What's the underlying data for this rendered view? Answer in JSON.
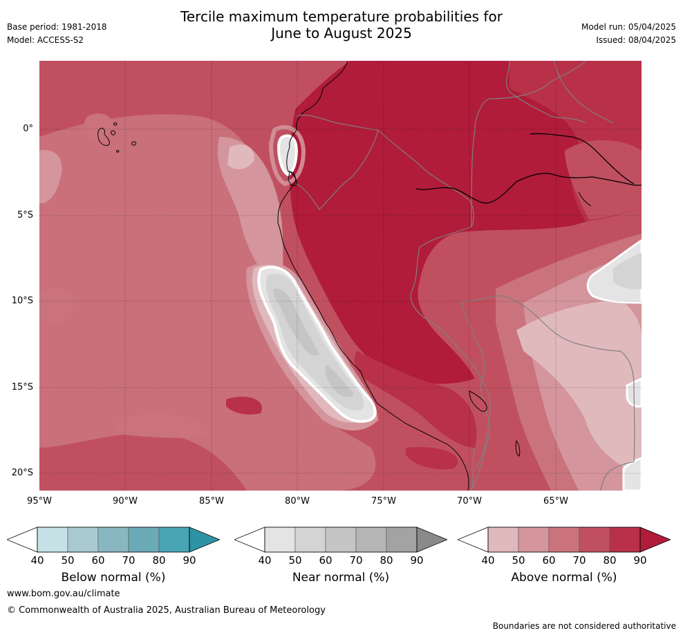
{
  "header": {
    "title_line1": "Tercile maximum temperature probabilities for",
    "title_line2": "June to August 2025",
    "base_period": "Base period: 1981-2018",
    "model": "Model: ACCESS-S2",
    "model_run": "Model run: 05/04/2025",
    "issued": "Issued: 08/04/2025"
  },
  "map": {
    "region": "western South America",
    "lon_range": [
      -95,
      -60
    ],
    "lat_range": [
      -21,
      4
    ],
    "lat_labels": [
      "0°",
      "5°S",
      "10°S",
      "15°S",
      "20°S"
    ],
    "lon_labels": [
      "95°W",
      "90°W",
      "85°W",
      "80°W",
      "75°W",
      "70°W",
      "65°W"
    ],
    "colors": {
      "above_40_50": "#e0b9bd",
      "above_50_60": "#d4959c",
      "above_60_70": "#ca737d",
      "above_70_80": "#c05060",
      "above_80_90": "#b83148",
      "above_90": "#b01c3a",
      "near_40_50": "#e4e4e4",
      "near_50_60": "#d4d4d4",
      "near_60_70": "#c5c5c5",
      "coast": "#000000",
      "border": "#808080"
    }
  },
  "legends": [
    {
      "label": "Below normal (%)",
      "ticks": [
        "40",
        "50",
        "60",
        "70",
        "80",
        "90"
      ],
      "colors": [
        "#ffffff",
        "#c7e2e7",
        "#a8cad0",
        "#89b7c1",
        "#6aabb7",
        "#49a4b3",
        "#2e93a4"
      ]
    },
    {
      "label": "Near normal (%)",
      "ticks": [
        "40",
        "50",
        "60",
        "70",
        "80",
        "90"
      ],
      "colors": [
        "#ffffff",
        "#e4e4e4",
        "#d4d4d4",
        "#c5c5c5",
        "#b5b5b5",
        "#a3a3a3",
        "#8a8a8a"
      ]
    },
    {
      "label": "Above normal (%)",
      "ticks": [
        "40",
        "50",
        "60",
        "70",
        "80",
        "90"
      ],
      "colors": [
        "#ffffff",
        "#e0b9bd",
        "#d4959c",
        "#ca737d",
        "#c05060",
        "#b83148",
        "#b01c3a"
      ]
    }
  ],
  "footer": {
    "website": "www.bom.gov.au/climate",
    "copyright": "© Commonwealth of Australia 2025, Australian Bureau of Meteorology",
    "disclaimer": "Boundaries are not considered authoritative"
  }
}
